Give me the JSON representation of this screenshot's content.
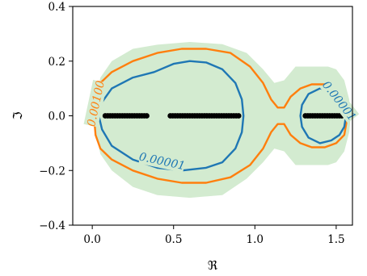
{
  "chart_data": {
    "type": "contour",
    "xlabel": "ℜ",
    "ylabel": "ℑ",
    "xlim": [
      -0.12,
      1.6
    ],
    "ylim": [
      -0.4,
      0.4
    ],
    "x_ticks": [
      {
        "value": 0.0,
        "label": "0.0"
      },
      {
        "value": 0.5,
        "label": "0.5"
      },
      {
        "value": 1.0,
        "label": "1.0"
      },
      {
        "value": 1.5,
        "label": "1.5"
      }
    ],
    "y_ticks": [
      {
        "value": -0.4,
        "label": "−0.4"
      },
      {
        "value": -0.2,
        "label": "−0.2"
      },
      {
        "value": 0.0,
        "label": "0.0"
      },
      {
        "value": 0.2,
        "label": "0.2"
      },
      {
        "value": 0.4,
        "label": "0.4"
      }
    ],
    "region": {
      "color": "#d3ebd0",
      "upper": [
        [
          0.02,
          0.06
        ],
        [
          0.05,
          0.14
        ],
        [
          0.12,
          0.2
        ],
        [
          0.25,
          0.245
        ],
        [
          0.4,
          0.26
        ],
        [
          0.6,
          0.27
        ],
        [
          0.8,
          0.262
        ],
        [
          0.95,
          0.23
        ],
        [
          1.05,
          0.17
        ],
        [
          1.12,
          0.12
        ],
        [
          1.18,
          0.13
        ],
        [
          1.25,
          0.18
        ],
        [
          1.3,
          0.18
        ],
        [
          1.35,
          0.18
        ],
        [
          1.45,
          0.18
        ],
        [
          1.5,
          0.17
        ],
        [
          1.55,
          0.13
        ],
        [
          1.58,
          0.06
        ],
        [
          1.59,
          0.0
        ]
      ],
      "lower": [
        [
          1.59,
          0.0
        ],
        [
          1.58,
          -0.06
        ],
        [
          1.55,
          -0.13
        ],
        [
          1.5,
          -0.17
        ],
        [
          1.45,
          -0.18
        ],
        [
          1.35,
          -0.18
        ],
        [
          1.3,
          -0.18
        ],
        [
          1.25,
          -0.18
        ],
        [
          1.18,
          -0.13
        ],
        [
          1.12,
          -0.12
        ],
        [
          1.05,
          -0.17
        ],
        [
          0.95,
          -0.23
        ],
        [
          0.8,
          -0.29
        ],
        [
          0.6,
          -0.3
        ],
        [
          0.4,
          -0.29
        ],
        [
          0.25,
          -0.26
        ],
        [
          0.12,
          -0.2
        ],
        [
          0.05,
          -0.14
        ],
        [
          0.02,
          -0.06
        ],
        [
          0.01,
          0.0
        ]
      ]
    },
    "contours": [
      {
        "level_label": "0.00100",
        "color": "#ff7f0e",
        "label_at": [
          0.02,
          0.045
        ],
        "label_rotation": -78,
        "points": [
          [
            0.01,
            0.0
          ],
          [
            0.02,
            0.07
          ],
          [
            0.05,
            0.12
          ],
          [
            0.12,
            0.16
          ],
          [
            0.25,
            0.2
          ],
          [
            0.4,
            0.23
          ],
          [
            0.55,
            0.245
          ],
          [
            0.7,
            0.245
          ],
          [
            0.85,
            0.23
          ],
          [
            0.97,
            0.18
          ],
          [
            1.05,
            0.12
          ],
          [
            1.1,
            0.06
          ],
          [
            1.14,
            0.03
          ],
          [
            1.18,
            0.03
          ],
          [
            1.22,
            0.07
          ],
          [
            1.28,
            0.1
          ],
          [
            1.35,
            0.115
          ],
          [
            1.43,
            0.115
          ],
          [
            1.5,
            0.1
          ],
          [
            1.55,
            0.07
          ],
          [
            1.57,
            0.0
          ],
          [
            1.55,
            -0.07
          ],
          [
            1.5,
            -0.1
          ],
          [
            1.43,
            -0.115
          ],
          [
            1.35,
            -0.115
          ],
          [
            1.28,
            -0.1
          ],
          [
            1.22,
            -0.07
          ],
          [
            1.18,
            -0.03
          ],
          [
            1.14,
            -0.03
          ],
          [
            1.1,
            -0.06
          ],
          [
            1.05,
            -0.12
          ],
          [
            0.97,
            -0.18
          ],
          [
            0.85,
            -0.225
          ],
          [
            0.7,
            -0.245
          ],
          [
            0.55,
            -0.245
          ],
          [
            0.4,
            -0.23
          ],
          [
            0.25,
            -0.2
          ],
          [
            0.12,
            -0.16
          ],
          [
            0.05,
            -0.12
          ],
          [
            0.02,
            -0.07
          ],
          [
            0.01,
            0.0
          ]
        ]
      },
      {
        "level_label": "0.00001",
        "color": "#1f77b4",
        "label_at": [
          0.43,
          -0.165
        ],
        "label_rotation": 12,
        "points": [
          [
            0.04,
            0.0
          ],
          [
            0.06,
            0.05
          ],
          [
            0.12,
            0.1
          ],
          [
            0.25,
            0.14
          ],
          [
            0.38,
            0.16
          ],
          [
            0.5,
            0.19
          ],
          [
            0.6,
            0.2
          ],
          [
            0.7,
            0.195
          ],
          [
            0.8,
            0.17
          ],
          [
            0.88,
            0.12
          ],
          [
            0.92,
            0.06
          ],
          [
            0.93,
            0.0
          ],
          [
            0.92,
            -0.06
          ],
          [
            0.88,
            -0.12
          ],
          [
            0.8,
            -0.17
          ],
          [
            0.7,
            -0.19
          ],
          [
            0.55,
            -0.2
          ],
          [
            0.4,
            -0.19
          ],
          [
            0.25,
            -0.16
          ],
          [
            0.12,
            -0.11
          ],
          [
            0.06,
            -0.05
          ],
          [
            0.04,
            0.0
          ]
        ]
      },
      {
        "level_label": "0.00001",
        "color": "#1f77b4",
        "label_at": [
          1.52,
          0.055
        ],
        "label_rotation": 52,
        "points": [
          [
            1.48,
            0.09
          ],
          [
            1.4,
            0.1
          ],
          [
            1.33,
            0.08
          ],
          [
            1.29,
            0.04
          ],
          [
            1.28,
            0.0
          ],
          [
            1.29,
            -0.04
          ],
          [
            1.33,
            -0.08
          ],
          [
            1.4,
            -0.1
          ],
          [
            1.47,
            -0.09
          ],
          [
            1.52,
            -0.07
          ],
          [
            1.55,
            -0.04
          ],
          [
            1.56,
            0.0
          ]
        ]
      }
    ],
    "eigenvalues": {
      "color": "#000000",
      "x": [
        0.0,
        0.08,
        0.095,
        0.11,
        0.125,
        0.14,
        0.155,
        0.17,
        0.185,
        0.2,
        0.215,
        0.23,
        0.245,
        0.26,
        0.275,
        0.29,
        0.305,
        0.32,
        0.335,
        0.48,
        0.495,
        0.51,
        0.525,
        0.54,
        0.555,
        0.57,
        0.585,
        0.6,
        0.615,
        0.63,
        0.645,
        0.66,
        0.675,
        0.69,
        0.705,
        0.72,
        0.735,
        0.75,
        0.765,
        0.78,
        0.795,
        0.81,
        0.825,
        0.84,
        0.855,
        0.87,
        0.885,
        0.9,
        1.31,
        1.325,
        1.34,
        1.355,
        1.37,
        1.385,
        1.4,
        1.415,
        1.43,
        1.445,
        1.46,
        1.475,
        1.49,
        1.505,
        1.52,
        1.535
      ],
      "y": 0.0
    }
  }
}
